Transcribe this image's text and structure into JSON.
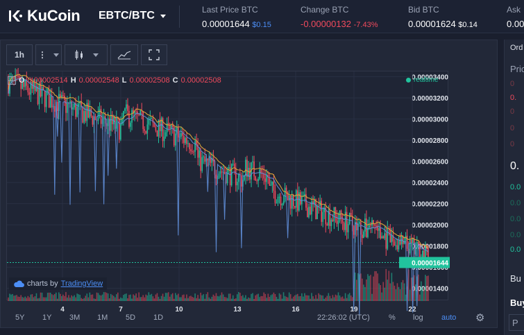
{
  "header": {
    "logo_text": "KuCoin",
    "pair": "EBTC/BTC",
    "stats": [
      {
        "label": "Last Price BTC",
        "value": "0.00001644",
        "sub": "$0.15",
        "sub_color": "#4c8ef5"
      },
      {
        "label": "Change BTC",
        "value": "-0.00000132",
        "sub": "-7.43%",
        "value_color": "#f04a5d",
        "sub_color": "#f04a5d"
      },
      {
        "label": "Bid BTC",
        "value": "0.00001624",
        "sub": "$0.14"
      },
      {
        "label": "Ask",
        "value": "0.00"
      }
    ]
  },
  "chart_toolbar": {
    "interval": "1h"
  },
  "ohlc": {
    "o_label": "O",
    "o": "0.00002514",
    "h_label": "H",
    "h": "0.00002548",
    "l_label": "L",
    "l": "0.00002508",
    "c_label": "C",
    "c": "0.00002508"
  },
  "realtime": "realtime",
  "tradingview": {
    "prefix": "charts by",
    "name": "TradingView"
  },
  "bottom": {
    "ranges": [
      "5Y",
      "1Y",
      "3M",
      "1M",
      "5D",
      "1D"
    ],
    "time": "22:26:02 (UTC)",
    "percent": "%",
    "log": "log",
    "auto": "auto"
  },
  "right_panel": {
    "top": "Ord",
    "price": "Pric",
    "bid": "0.",
    "buy": "Bu",
    "buy2": "Buy",
    "input": "P"
  },
  "chart_data": {
    "type": "candlestick",
    "x_ticks": [
      "4",
      "7",
      "10",
      "13",
      "16",
      "19",
      "22"
    ],
    "y_ticks": [
      "0.00003400",
      "0.00003200",
      "0.00003000",
      "0.00002800",
      "0.00002600",
      "0.00002400",
      "0.00002200",
      "0.00002000",
      "0.00001800",
      "0.00001600",
      "0.00001400"
    ],
    "ylim": [
      1.28e-05,
      3.45e-05
    ],
    "last_price": "0.00001644",
    "colors": {
      "up": "#21c39d",
      "down": "#f04a5d",
      "ma": "#d6a23a",
      "line": "#5f8ed8",
      "last": "#21c39d"
    }
  }
}
